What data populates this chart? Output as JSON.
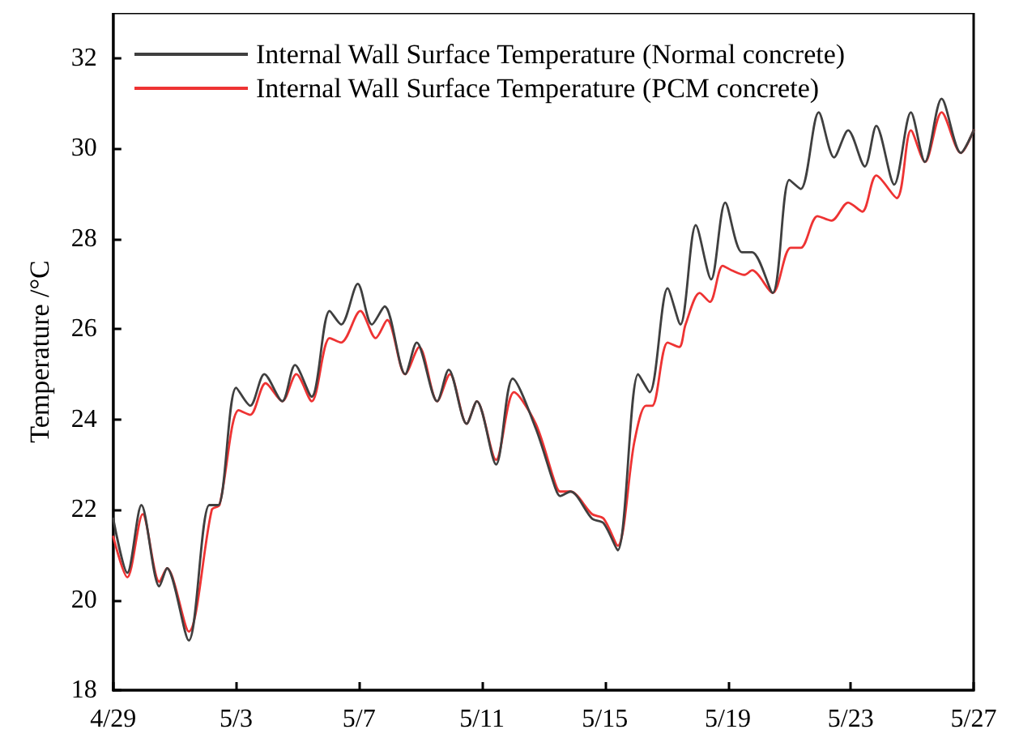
{
  "chart_data": {
    "type": "line",
    "ylabel": "Temperature /°C",
    "xlim": [
      "--04-29",
      "--05-27"
    ],
    "ylim": [
      18,
      33
    ],
    "xticks": [
      {
        "value": "--04-29",
        "label": "4/29"
      },
      {
        "value": "--05-03",
        "label": "5/3"
      },
      {
        "value": "--05-07",
        "label": "5/7"
      },
      {
        "value": "--05-11",
        "label": "5/11"
      },
      {
        "value": "--05-15",
        "label": "5/15"
      },
      {
        "value": "--05-19",
        "label": "5/19"
      },
      {
        "value": "--05-23",
        "label": "5/23"
      },
      {
        "value": "--05-27",
        "label": "5/27"
      }
    ],
    "yticks": [
      18,
      20,
      22,
      24,
      26,
      28,
      30,
      32
    ],
    "grid": false,
    "legend": "top left",
    "marker": "none",
    "line_style": "solid",
    "series": [
      {
        "name": "Internal Wall Surface Temperature (Normal concrete)",
        "color": "#3f3f3f",
        "x": [
          "--04-29T00:00",
          "--04-29T11:00",
          "--04-29T22:00",
          "--04-30T12:00",
          "--04-30T18:00",
          "--05-01T11:00",
          "--05-02T03:00",
          "--05-02T10:00",
          "--05-03T00:00",
          "--05-03T11:00",
          "--05-03T22:00",
          "--05-04T12:00",
          "--05-04T22:00",
          "--05-05T11:00",
          "--05-06T01:00",
          "--05-06T10:00",
          "--05-06T23:00",
          "--05-07T10:00",
          "--05-07T20:00",
          "--05-08T12:00",
          "--05-08T21:00",
          "--05-09T13:00",
          "--05-09T22:00",
          "--05-10T12:00",
          "--05-10T20:00",
          "--05-11T11:00",
          "--05-12T00:00",
          "--05-12T18:00",
          "--05-13T09:00",
          "--05-13T13:00",
          "--05-13T21:00",
          "--05-14T14:00",
          "--05-14T23:00",
          "--05-15T10:00",
          "--05-16T02:00",
          "--05-16T11:00",
          "--05-17T01:00",
          "--05-17T11:00",
          "--05-17T23:00",
          "--05-18T11:00",
          "--05-18T22:00",
          "--05-19T11:00",
          "--05-19T19:00",
          "--05-20T11:00",
          "--05-21T00:00",
          "--05-21T09:00",
          "--05-21T23:00",
          "--05-22T11:00",
          "--05-22T22:00",
          "--05-23T11:00",
          "--05-23T20:00",
          "--05-24T10:00",
          "--05-24T23:00",
          "--05-25T10:00",
          "--05-25T23:00",
          "--05-26T14:00",
          "--05-27T00:00"
        ],
        "values": [
          21.8,
          20.6,
          22.1,
          20.3,
          20.7,
          19.1,
          22.1,
          22.1,
          24.7,
          24.3,
          25.0,
          24.4,
          25.2,
          24.5,
          26.4,
          26.1,
          27.0,
          26.1,
          26.5,
          25.0,
          25.7,
          24.4,
          25.1,
          23.9,
          24.4,
          23.0,
          24.9,
          23.8,
          22.5,
          22.3,
          22.4,
          21.8,
          21.7,
          21.1,
          25.0,
          24.6,
          26.9,
          26.1,
          28.3,
          27.1,
          28.8,
          27.7,
          27.7,
          26.8,
          29.3,
          29.1,
          30.8,
          29.8,
          30.4,
          29.6,
          30.5,
          29.2,
          30.8,
          29.7,
          31.1,
          29.9,
          30.4
        ]
      },
      {
        "name": "Internal Wall Surface Temperature (PCM concrete)",
        "color": "#ee3333",
        "x": [
          "--04-29T00:00",
          "--04-29T11:00",
          "--04-29T23:00",
          "--04-30T12:00",
          "--04-30T18:00",
          "--05-01T11:00",
          "--05-02T05:00",
          "--05-02T11:00",
          "--05-03T02:00",
          "--05-03T11:00",
          "--05-03T23:00",
          "--05-04T12:00",
          "--05-04T23:00",
          "--05-05T11:00",
          "--05-06T01:00",
          "--05-06T10:00",
          "--05-07T01:00",
          "--05-07T13:00",
          "--05-07T22:00",
          "--05-08T12:00",
          "--05-08T23:00",
          "--05-09T13:00",
          "--05-09T23:00",
          "--05-10T12:00",
          "--05-10T20:00",
          "--05-11T11:00",
          "--05-12T01:00",
          "--05-12T18:00",
          "--05-13T09:00",
          "--05-13T13:00",
          "--05-13T21:00",
          "--05-14T14:00",
          "--05-14T23:00",
          "--05-15T10:00",
          "--05-15T23:00",
          "--05-16T08:00",
          "--05-16T13:00",
          "--05-17T01:00",
          "--05-17T10:00",
          "--05-17T15:00",
          "--05-18T02:00",
          "--05-18T10:00",
          "--05-18T20:00",
          "--05-19T03:00",
          "--05-19T13:00",
          "--05-19T19:00",
          "--05-20T11:00",
          "--05-21T01:00",
          "--05-21T09:00",
          "--05-21T22:00",
          "--05-22T09:00",
          "--05-22T22:00",
          "--05-23T09:00",
          "--05-23T20:00",
          "--05-24T12:00",
          "--05-24T23:00",
          "--05-25T10:00",
          "--05-25T23:00",
          "--05-26T14:00",
          "--05-27T00:00"
        ],
        "values": [
          21.4,
          20.5,
          21.9,
          20.4,
          20.7,
          19.3,
          22.0,
          22.1,
          24.2,
          24.1,
          24.8,
          24.4,
          25.0,
          24.4,
          25.8,
          25.7,
          26.4,
          25.8,
          26.2,
          25.0,
          25.6,
          24.4,
          25.0,
          23.9,
          24.4,
          23.1,
          24.6,
          23.9,
          22.6,
          22.4,
          22.4,
          21.9,
          21.8,
          21.2,
          23.5,
          24.3,
          24.3,
          25.7,
          25.6,
          26.1,
          26.8,
          26.6,
          27.4,
          27.3,
          27.2,
          27.3,
          26.8,
          27.8,
          27.8,
          28.5,
          28.4,
          28.8,
          28.6,
          29.4,
          28.9,
          30.4,
          29.7,
          30.8,
          29.9,
          30.4
        ]
      }
    ]
  }
}
